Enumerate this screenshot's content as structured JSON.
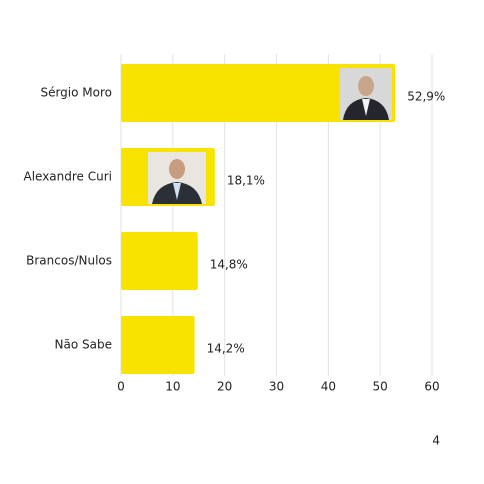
{
  "chart_data": {
    "type": "bar",
    "orientation": "horizontal",
    "categories": [
      "Sérgio Moro",
      "Alexandre Curi",
      "Brancos/Nulos",
      "Não Sabe"
    ],
    "values": [
      52.9,
      18.1,
      14.8,
      14.2
    ],
    "value_labels": [
      "52,9%",
      "18,1%",
      "14,8%",
      "14,2%"
    ],
    "color": "#f7e200",
    "xlim": [
      0,
      60
    ],
    "xticks": [
      0,
      10,
      20,
      30,
      40,
      50,
      60
    ],
    "grid": true,
    "note": "4"
  }
}
